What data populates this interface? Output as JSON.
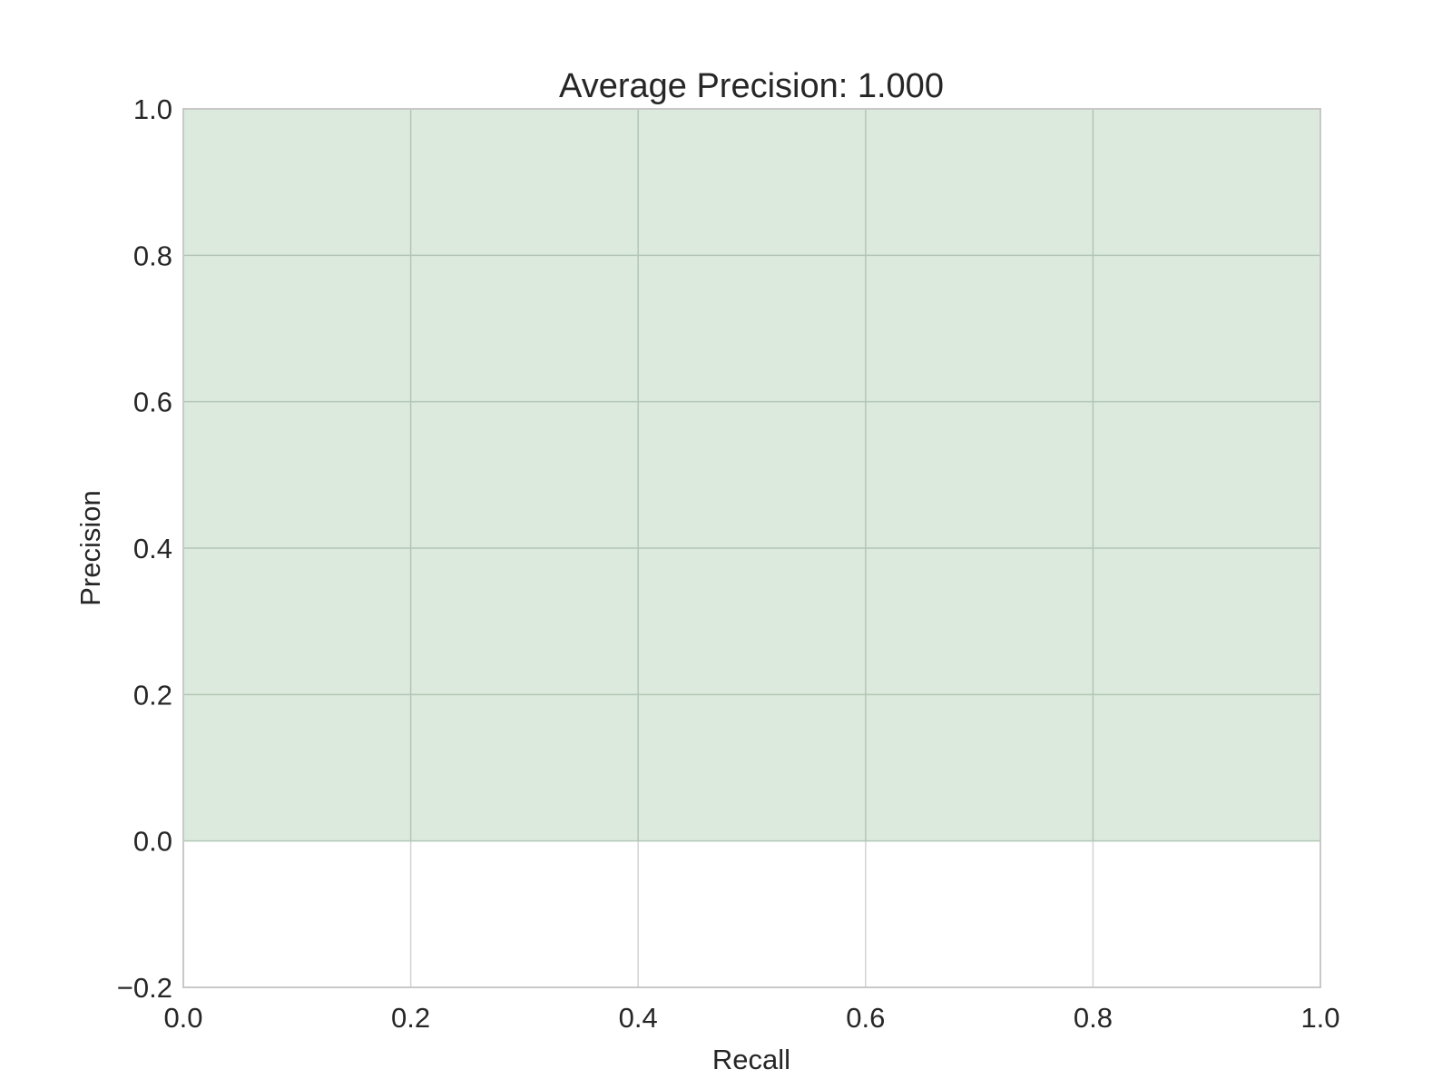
{
  "chart_data": {
    "type": "area",
    "title": "Average Precision: 1.000",
    "xlabel": "Recall",
    "ylabel": "Precision",
    "xlim": [
      0.0,
      1.0
    ],
    "ylim": [
      -0.2,
      1.0
    ],
    "x_ticks": [
      0.0,
      0.2,
      0.4,
      0.6,
      0.8,
      1.0
    ],
    "x_tick_labels": [
      "0.0",
      "0.2",
      "0.4",
      "0.6",
      "0.8",
      "1.0"
    ],
    "y_ticks": [
      -0.2,
      0.0,
      0.2,
      0.4,
      0.6,
      0.8,
      1.0
    ],
    "y_tick_labels": [
      "−0.2",
      "0.0",
      "0.2",
      "0.4",
      "0.6",
      "0.8",
      "1.0"
    ],
    "grid": true,
    "series": [
      {
        "x": [
          0.0,
          1.0
        ],
        "y": [
          1.0,
          1.0
        ],
        "fill_to": 0.0,
        "fill_color": "#dbeadd",
        "line_color": "#dbeadd"
      }
    ],
    "colors": {
      "fill": "#dbeadd",
      "grid": "#d3d3d3",
      "grid_over_fill": "#b3c6b6",
      "spine": "#c8c8c8",
      "text": "#262626"
    }
  }
}
